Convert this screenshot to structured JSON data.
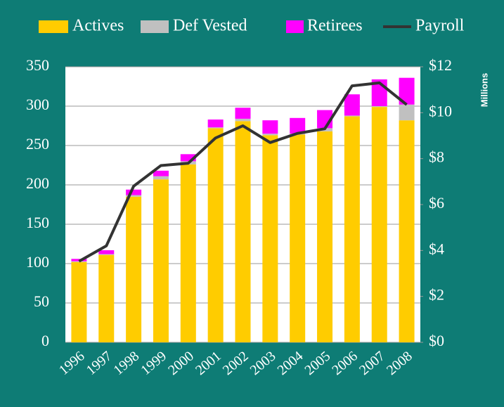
{
  "chart_data": {
    "type": "bar",
    "stacked": true,
    "legend": "top",
    "grid": true,
    "categories": [
      "1996",
      "1997",
      "1998",
      "1999",
      "2000",
      "2001",
      "2002",
      "2003",
      "2004",
      "2005",
      "2006",
      "2007",
      "2008"
    ],
    "series": [
      {
        "name": "Actives",
        "color": "#ffcc00",
        "values": [
          102,
          111,
          185,
          207,
          226,
          272,
          281,
          263,
          264,
          268,
          287,
          299,
          282
        ]
      },
      {
        "name": "Def Vested",
        "color": "#c0c0c0",
        "values": [
          1,
          1,
          2,
          4,
          4,
          1,
          3,
          2,
          1,
          4,
          1,
          1,
          20
        ]
      },
      {
        "name": "Retirees",
        "color": "#ff00ff",
        "values": [
          3,
          5,
          7,
          7,
          9,
          10,
          14,
          17,
          20,
          23,
          27,
          34,
          34
        ]
      },
      {
        "name": "Payroll",
        "color": "#333333",
        "type": "line",
        "axis": "y2",
        "values": [
          3.53,
          4.2,
          6.8,
          7.7,
          7.8,
          8.9,
          9.43,
          8.7,
          9.1,
          9.3,
          11.17,
          11.3,
          10.35
        ]
      }
    ],
    "ylim": [
      0,
      350
    ],
    "yticks": [
      0,
      50,
      100,
      150,
      200,
      250,
      300,
      350
    ],
    "y2lim": [
      0,
      12
    ],
    "y2label": "Millions",
    "y2ticks": [
      {
        "value": 0,
        "label": "$0"
      },
      {
        "value": 2,
        "label": "$2"
      },
      {
        "value": 4,
        "label": "$4"
      },
      {
        "value": 6,
        "label": "$6"
      },
      {
        "value": 8,
        "label": "$8"
      },
      {
        "value": 10,
        "label": "$10"
      },
      {
        "value": 12,
        "label": "$12"
      }
    ]
  }
}
